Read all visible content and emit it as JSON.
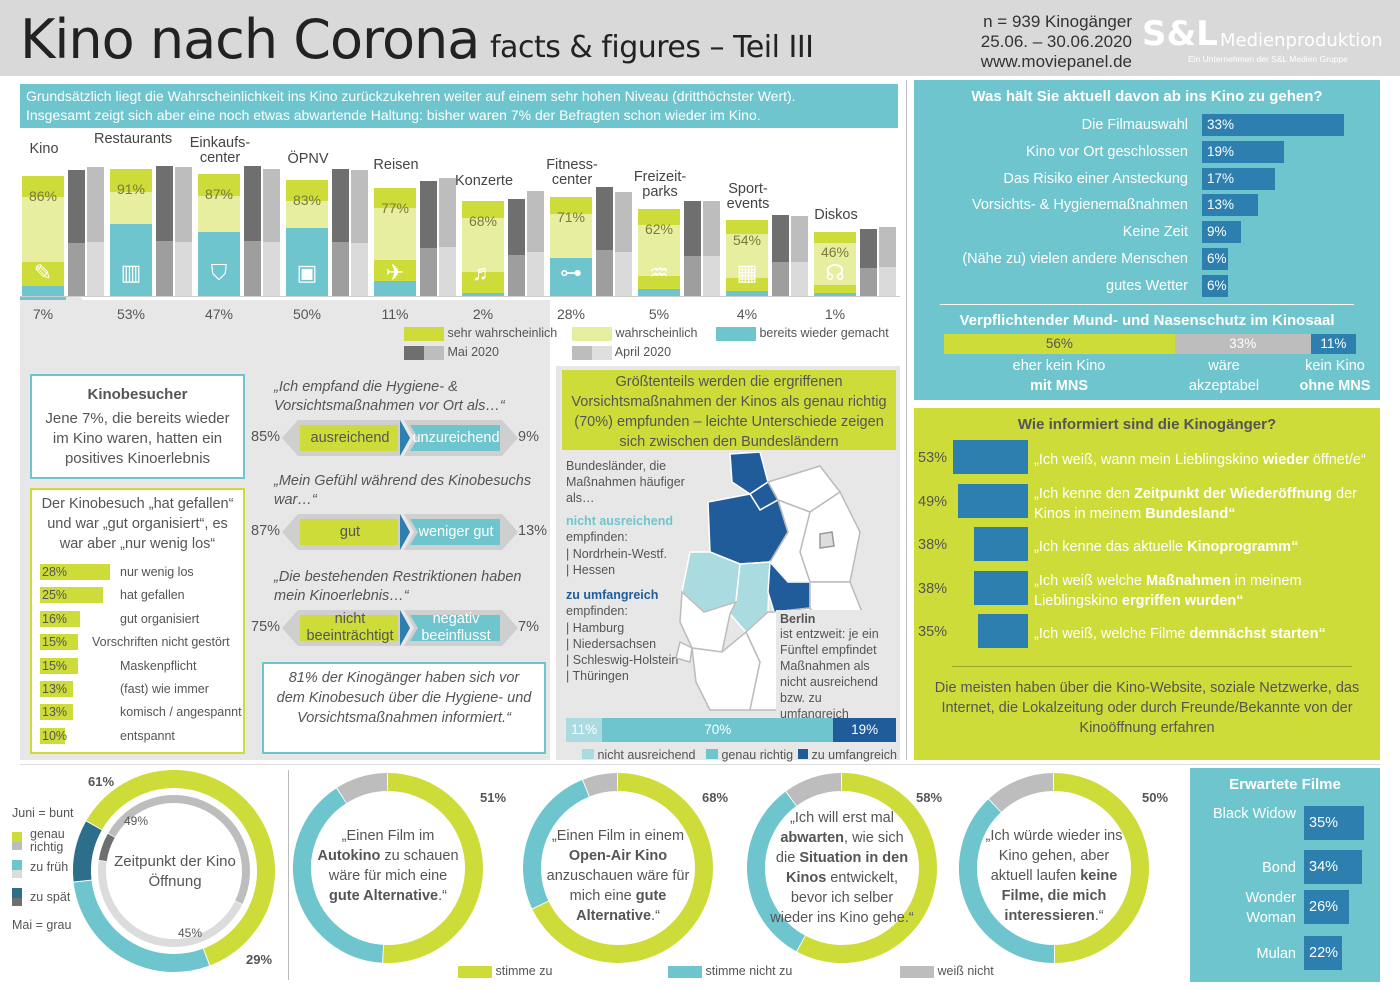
{
  "header": {
    "title_main": "Kino nach Corona",
    "title_sub": "facts & figures – Teil III",
    "sample": "n = 939 Kinogänger",
    "period": "25.06. – 30.06.2020",
    "website": "www.moviepanel.de",
    "brand": "S&L",
    "brand_sub": "Medienproduktion",
    "brand_tag": "Ein Unternehmen der S&L Medien Gruppe"
  },
  "intro": {
    "line1": "Grundsätzlich liegt die Wahrscheinlichkeit ins Kino zurückzukehren weiter auf einem sehr hohen Niveau (dritthöchster Wert).",
    "line2": "Insgesamt zeigt sich aber eine noch etwas abwartende Haltung: bisher waren 7% der Befragten schon wieder im Kino."
  },
  "colors": {
    "lime": "#cddc39",
    "lime_light": "#e8eea0",
    "teal": "#6ec5ce",
    "dark_blue": "#1f5c99",
    "mid_blue": "#2d7fb0",
    "grey_dark": "#6f6f6f",
    "grey_light": "#bdbdbd"
  },
  "chart_data": [
    {
      "type": "bar",
      "title": "Wahrscheinlichkeit der Rückkehr",
      "categories": [
        "Kino",
        "Restaurants",
        "Einkaufs-center",
        "ÖPNV",
        "Reisen",
        "Konzerte",
        "Fitness-center",
        "Freizeit-parks",
        "Sport-events",
        "Diskos"
      ],
      "icons": [
        "ticket-icon",
        "table-chairs-icon",
        "shopping-bag-icon",
        "tram-icon",
        "plane-icon",
        "guitar-icon",
        "dumbbell-icon",
        "rollercoaster-icon",
        "stadium-icon",
        "dj-icon"
      ],
      "series": [
        {
          "name": "sehr wahrscheinlich + wahrscheinlich",
          "values": [
            86,
            91,
            87,
            83,
            77,
            68,
            71,
            62,
            54,
            46
          ]
        },
        {
          "name": "sehr wahrscheinlich",
          "values": [
            24,
            47,
            38,
            38,
            26,
            17,
            24,
            14,
            13,
            8
          ]
        },
        {
          "name": "bereits wieder gemacht",
          "values": [
            7,
            53,
            47,
            50,
            11,
            2,
            28,
            5,
            4,
            1
          ]
        },
        {
          "name": "Mai 2020",
          "values": [
            90,
            93,
            93,
            91,
            82,
            69,
            78,
            68,
            58,
            48
          ]
        },
        {
          "name": "April 2020",
          "values": [
            92,
            92,
            91,
            90,
            84,
            75,
            74,
            68,
            57,
            49
          ]
        }
      ],
      "labels_top": [
        "86%",
        "91%",
        "87%",
        "83%",
        "77%",
        "68%",
        "71%",
        "62%",
        "54%",
        "46%"
      ],
      "labels_bottom": [
        "7%",
        "53%",
        "47%",
        "50%",
        "11%",
        "2%",
        "28%",
        "5%",
        "4%",
        "1%"
      ],
      "legend": [
        {
          "label": "sehr wahrscheinlich",
          "color": "#cddc39"
        },
        {
          "label": "wahrscheinlich",
          "color": "#e8eea0"
        },
        {
          "label": "bereits wieder gemacht",
          "color": "#6ec5ce"
        },
        {
          "label": "Mai 2020",
          "color": "#6f6f6f"
        },
        {
          "label": "April 2020",
          "color": "#bdbdbd"
        }
      ],
      "ylim": [
        0,
        100
      ]
    },
    {
      "type": "bar",
      "title": "Was hält Sie aktuell davon ab ins Kino zu gehen?",
      "categories": [
        "Die Filmauswahl",
        "Kino vor Ort geschlossen",
        "Das Risiko einer Ansteckung",
        "Vorsichts- & Hygienemaßnahmen",
        "Keine Zeit",
        "(Nähe zu) vielen andere Menschen",
        "gutes Wetter"
      ],
      "values": [
        33,
        19,
        17,
        13,
        9,
        6,
        6
      ]
    },
    {
      "type": "bar",
      "title": "Verpflichtender Mund- und Nasenschutz im Kinosaal",
      "categories": [
        "eher kein Kino mit MNS",
        "wäre akzeptabel",
        "kein Kino ohne MNS"
      ],
      "values": [
        56,
        33,
        11
      ]
    },
    {
      "type": "bar",
      "title": "Wie informiert sind die Kinogänger?",
      "categories": [
        "„Ich weiß, wann mein Lieblingskino wieder öffnet/e“",
        "„Ich kenne den Zeitpunkt der Wiederöffnung der Kinos in meinem Bundesland“",
        "„Ich kenne das aktuelle Kinoprogramm“",
        "„Ich weiß welche Maßnahmen in meinem Lieblingskino ergriffen wurden“",
        "„Ich weiß, welche Filme demnächst starten“"
      ],
      "values": [
        53,
        49,
        38,
        38,
        35
      ]
    },
    {
      "type": "bar",
      "title": "Erwartete Filme",
      "categories": [
        "Black Widow",
        "Bond",
        "Wonder Woman",
        "Mulan"
      ],
      "values": [
        35,
        34,
        26,
        22
      ]
    },
    {
      "type": "bar",
      "title": "Kinobesuch hat gefallen",
      "categories": [
        "nur wenig los",
        "hat gefallen",
        "gut organisiert",
        "Vorschriften nicht gestört",
        "Maskenpflicht",
        "(fast) wie immer",
        "komisch / angespannt",
        "entspannt"
      ],
      "values": [
        28,
        25,
        16,
        15,
        15,
        13,
        13,
        10
      ]
    },
    {
      "type": "bar",
      "title": "Vorsichtsmaßnahmen der Bundesländer",
      "categories": [
        "nicht ausreichend",
        "genau richtig",
        "zu umfangreich"
      ],
      "values": [
        11,
        70,
        19
      ]
    },
    {
      "type": "pie",
      "title": "Zeitpunkt der Kino Öffnung",
      "series": [
        {
          "name": "Juni",
          "values": [
            61,
            29,
            10
          ]
        },
        {
          "name": "Mai",
          "values": [
            49,
            45,
            6
          ]
        }
      ],
      "categories": [
        "genau richtig",
        "zu früh",
        "zu spät"
      ]
    },
    {
      "type": "pie",
      "title": "Aussagen",
      "categories": [
        "stimme zu",
        "stimme nicht zu",
        "weiß nicht"
      ],
      "series": [
        {
          "name": "Autokino",
          "values": [
            51,
            40,
            9
          ]
        },
        {
          "name": "Open-Air Kino",
          "values": [
            68,
            26,
            6
          ]
        },
        {
          "name": "abwarten",
          "values": [
            58,
            32,
            10
          ]
        },
        {
          "name": "keine Filme",
          "values": [
            50,
            38,
            12
          ]
        }
      ]
    }
  ],
  "right1": {
    "title": "Was hält Sie aktuell davon ab ins Kino zu gehen?"
  },
  "mns": {
    "title": "Verpflichtender Mund- und Nasenschutz im Kinosaal",
    "labels": [
      "56%",
      "33%",
      "11%"
    ],
    "captions": [
      [
        "eher kein Kino",
        "mit MNS"
      ],
      [
        "wäre",
        "akzeptabel"
      ],
      [
        "kein Kino",
        "ohne MNS"
      ]
    ]
  },
  "informed": {
    "title": "Wie informiert sind die Kinogänger?",
    "footer": "Die meisten haben über die Kino-Website, soziale Netzwerke, das Internet, die Lokalzeitung oder durch Freunde/Bekannte von der Kinoöffnung erfahren"
  },
  "films": {
    "title": "Erwartete Filme"
  },
  "kinobesucher": {
    "title": "Kinobesucher",
    "text": "Jene 7%, die bereits wieder im Kino waren, hatten ein positives Kinoerlebnis"
  },
  "gefallen": {
    "title": "Der Kinobesuch „hat gefallen“ und war „gut organisiert“, es war aber „nur wenig los“",
    "pcts": [
      "28%",
      "25%",
      "16%",
      "15%",
      "15%",
      "13%",
      "13%",
      "10%"
    ]
  },
  "hygiene": {
    "q1": "„Ich empfand die Hygiene- & Vorsichtsmaßnahmen vor Ort als…“",
    "a1": [
      "85%",
      "ausreichend",
      "unzureichend",
      "9%"
    ],
    "q2": "„Mein Gefühl während des Kinobesuchs war…“",
    "a2": [
      "87%",
      "gut",
      "weniger gut",
      "13%"
    ],
    "q3": "„Die bestehenden Restriktionen haben mein Kinoerlebnis…“",
    "a3": [
      "75%",
      "nicht beeinträchtigt",
      "negativ beeinflusst",
      "7%"
    ],
    "note": "81% der Kinogänger haben sich vor dem Kinobesuch über die Hygiene- und Vorsichtsmaßnahmen informiert.“"
  },
  "laender": {
    "headline": "Größtenteils werden die ergriffenen Vorsichtsmaßnahmen der Kinos als genau richtig (70%) empfunden – leichte Unterschiede zeigen sich zwischen den Bundesländern",
    "intro": "Bundesländer, die Maßnahmen häufiger als…",
    "na_title": "nicht ausreichend",
    "na_sub": "empfinden:",
    "na_items": [
      "Nordrhein-Westf.",
      "Hessen"
    ],
    "zu_title": "zu umfangreich",
    "zu_sub": "empfinden:",
    "zu_items": [
      "Hamburg",
      "Niedersachsen",
      "Schleswig-Holstein",
      "Thüringen"
    ],
    "berlin_title": "Berlin",
    "berlin_text": "ist entzweit: je ein Fünftel empfindet Maßnahmen als nicht ausreichend bzw. zu umfangreich",
    "bar_labels": [
      "11%",
      "70%",
      "19%"
    ],
    "legend": [
      "nicht ausreichend",
      "genau richtig",
      "zu umfangreich"
    ]
  },
  "donut_main": {
    "title": "Zeitpunkt der Kino Öffnung",
    "labels": [
      "61%",
      "49%",
      "45%",
      "29%"
    ],
    "legend_juni": "Juni = bunt",
    "legend_items": [
      "genau richtig",
      "zu früh",
      "zu spät"
    ],
    "legend_mai": "Mai = grau"
  },
  "donuts": [
    {
      "pct": "51%",
      "text": "„Einen Film im Autokino zu schauen wäre für mich eine gute Alternative.“"
    },
    {
      "pct": "68%",
      "text": "„Einen Film in einem Open-Air Kino anzuschauen wäre für mich eine gute Alternative.“"
    },
    {
      "pct": "58%",
      "text": "„Ich will erst mal abwarten, wie sich die Situation in den Kinos entwickelt, bevor ich selber wieder ins Kino gehe.“"
    },
    {
      "pct": "50%",
      "text": "„Ich würde wieder ins Kino gehen, aber aktuell laufen keine Filme, die mich interessieren.“"
    }
  ],
  "donut_legend": [
    "stimme zu",
    "stimme nicht zu",
    "weiß nicht"
  ]
}
